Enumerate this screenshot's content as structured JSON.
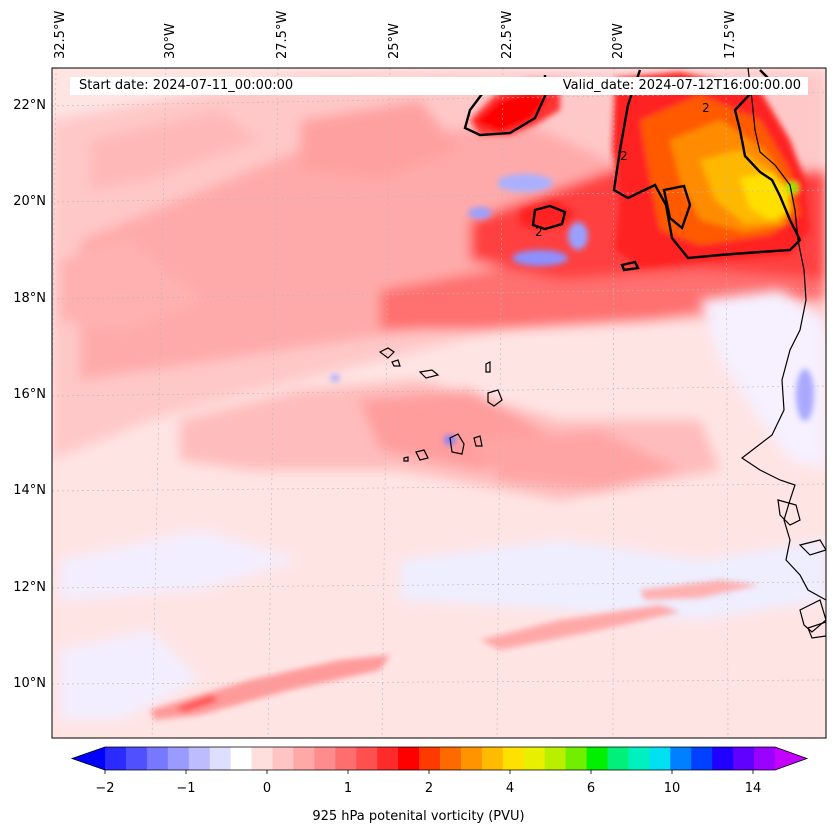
{
  "map": {
    "start_date": "Start date: 2024-07-11_00:00:00",
    "valid_date": "Valid_date: 2024-07-12T16:00:00.00",
    "lon_labels": [
      "32.5°W",
      "30°W",
      "27.5°W",
      "25°W",
      "22.5°W",
      "20°W",
      "17.5°W"
    ],
    "lat_labels": [
      "22°N",
      "20°N",
      "18°N",
      "16°N",
      "14°N",
      "12°N",
      "10°N"
    ],
    "contour_label": "2"
  },
  "colorbar": {
    "title": "925 hPa potenital vorticity (PVU)",
    "ticks": [
      "−2",
      "−1",
      "0",
      "1",
      "2",
      "4",
      "6",
      "10",
      "14"
    ],
    "colors": [
      "#0000ff",
      "#2b2bff",
      "#5050ff",
      "#7878ff",
      "#9a9aff",
      "#bcbcff",
      "#dedeff",
      "#ffffff",
      "#ffdede",
      "#ffc4c4",
      "#ffa8a8",
      "#ff8c8c",
      "#ff6e6e",
      "#ff5050",
      "#ff2a2a",
      "#ff0000",
      "#ff3a00",
      "#ff6a00",
      "#ff9400",
      "#ffbb00",
      "#ffe000",
      "#e8f000",
      "#b8f000",
      "#70f000",
      "#00f000",
      "#00f07a",
      "#00f0c0",
      "#00e0f0",
      "#0080ff",
      "#0040ff",
      "#2000ff",
      "#6000ff",
      "#9a00ff",
      "#c400ff"
    ]
  }
}
